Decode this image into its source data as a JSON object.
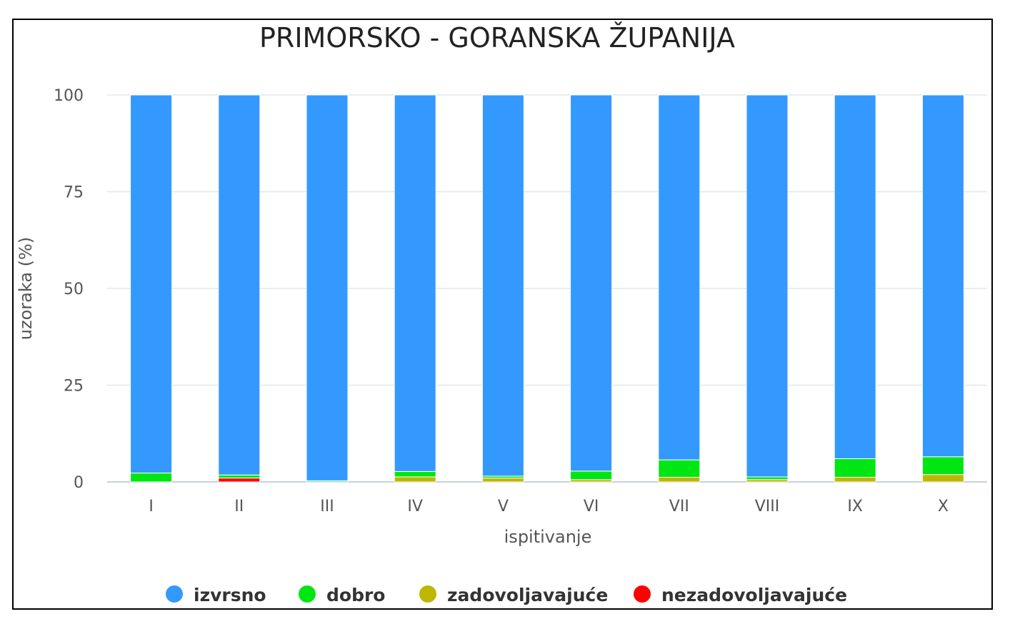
{
  "chart_data": {
    "type": "bar",
    "stacked": true,
    "title": "PRIMORSKO - GORANSKA ŽUPANIJA",
    "xlabel": "ispitivanje",
    "ylabel": "uzoraka (%)",
    "ylim": [
      0,
      100
    ],
    "yticks": [
      0,
      25,
      50,
      75,
      100
    ],
    "grid": true,
    "legend_position": "bottom",
    "categories": [
      "I",
      "II",
      "III",
      "IV",
      "V",
      "VI",
      "VII",
      "VIII",
      "IX",
      "X"
    ],
    "series": [
      {
        "name": "nezadovoljavajuće",
        "color": "#ff0000",
        "values": [
          0,
          1.0,
          0,
          0,
          0,
          0,
          0,
          0,
          0,
          0
        ]
      },
      {
        "name": "zadovoljavajuće",
        "color": "#bdb700",
        "values": [
          0,
          0,
          0,
          1.3,
          1.0,
          0.6,
          1.2,
          0.6,
          1.2,
          1.9
        ]
      },
      {
        "name": "dobro",
        "color": "#00e613",
        "values": [
          2.3,
          0.8,
          0.3,
          1.4,
          0.5,
          2.2,
          4.5,
          0.7,
          4.8,
          4.6
        ]
      },
      {
        "name": "izvrsno",
        "color": "#3399ff",
        "values": [
          97.7,
          98.2,
          99.7,
          97.3,
          98.5,
          97.2,
          94.3,
          98.7,
          94.0,
          93.5
        ]
      }
    ],
    "legend": [
      "izvrsno",
      "dobro",
      "zadovoljavajuće",
      "nezadovoljavajuće"
    ]
  }
}
